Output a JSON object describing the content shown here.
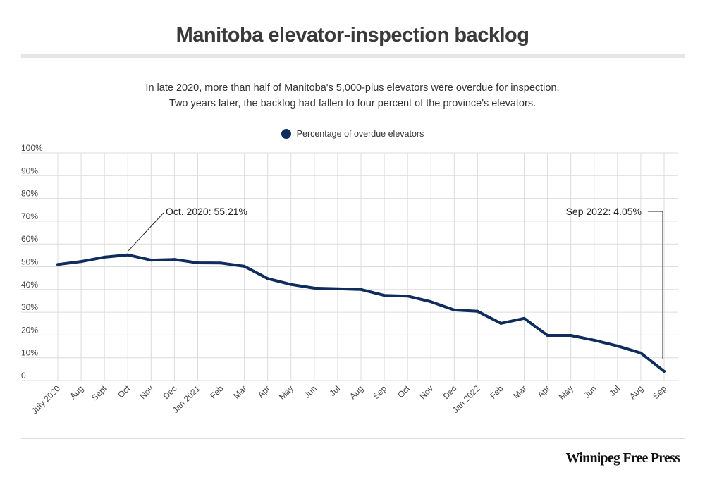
{
  "header": {
    "title": "Manitoba elevator-inspection backlog",
    "subtitle_line1": "In late 2020, more than half of Manitoba's 5,000-plus elevators were overdue for inspection.",
    "subtitle_line2": "Two years later, the backlog had fallen to four percent of the province's elevators."
  },
  "footer": {
    "brand": "Winnipeg Free Press"
  },
  "colors": {
    "line": "#0f2d5c",
    "grid": "#dcdcdc",
    "rule": "#e6e6e6"
  },
  "chart_data": {
    "type": "line",
    "title": "Manitoba elevator-inspection backlog",
    "xlabel": "",
    "ylabel": "",
    "ylim": [
      0,
      100
    ],
    "grid": true,
    "legend_position": "top-center",
    "y_ticks": [
      {
        "value": 0,
        "label": "0"
      },
      {
        "value": 10,
        "label": "10%"
      },
      {
        "value": 20,
        "label": "20%"
      },
      {
        "value": 30,
        "label": "30%"
      },
      {
        "value": 40,
        "label": "40%"
      },
      {
        "value": 50,
        "label": "50%"
      },
      {
        "value": 60,
        "label": "60%"
      },
      {
        "value": 70,
        "label": "70%"
      },
      {
        "value": 80,
        "label": "80%"
      },
      {
        "value": 90,
        "label": "90%"
      },
      {
        "value": 100,
        "label": "100%"
      }
    ],
    "categories": [
      "July 2020",
      "Aug",
      "Sept",
      "Oct",
      "Nov",
      "Dec",
      "Jan 2021",
      "Feb",
      "Mar",
      "Apr",
      "May",
      "Jun",
      "Jul",
      "Aug",
      "Sep",
      "Oct",
      "Nov",
      "Dec",
      "Jan 2022",
      "Feb",
      "Mar",
      "Apr",
      "May",
      "Jun",
      "Jul",
      "Aug",
      "Sep"
    ],
    "series": [
      {
        "name": "Percentage of overdue elevators",
        "color": "#0f2d5c",
        "values": [
          51.0,
          52.3,
          54.2,
          55.21,
          52.9,
          53.2,
          51.7,
          51.6,
          50.2,
          44.8,
          42.2,
          40.6,
          40.3,
          40.0,
          37.4,
          37.1,
          34.6,
          31.0,
          30.4,
          25.1,
          27.3,
          19.8,
          19.8,
          17.7,
          15.2,
          12.1,
          4.05
        ]
      }
    ],
    "annotations": [
      {
        "index": 3,
        "text": "Oct. 2020: 55.21%",
        "value": 55.21
      },
      {
        "index": 26,
        "text": "Sep 2022: 4.05%",
        "value": 4.05
      }
    ]
  }
}
